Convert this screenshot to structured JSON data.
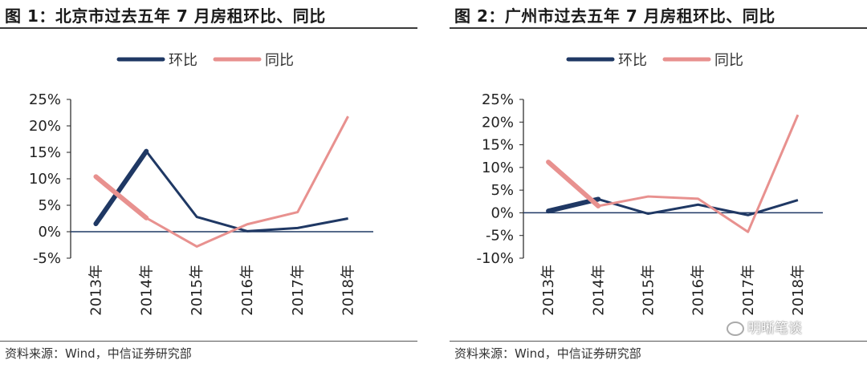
{
  "left": {
    "title": "图 1：北京市过去五年 7 月房租环比、同比",
    "source": "资料来源：Wind，中信证券研究部"
  },
  "right": {
    "title": "图 2：广州市过去五年 7 月房租环比、同比",
    "source": "资料来源：Wind，中信证券研究部"
  },
  "watermark": "明晰笔谈",
  "colors": {
    "huanbi": "#1f3864",
    "tongbi": "#e8918f",
    "axis": "#1f3864"
  },
  "chart_data": [
    {
      "type": "line",
      "categories": [
        "2013年",
        "2014年",
        "2015年",
        "2016年",
        "2017年",
        "2018年"
      ],
      "series": [
        {
          "name": "环比",
          "values": [
            1.5,
            15.2,
            2.8,
            0.1,
            0.7,
            2.5
          ]
        },
        {
          "name": "同比",
          "values": [
            10.4,
            2.6,
            -2.8,
            1.4,
            3.7,
            21.8
          ]
        }
      ],
      "yticks": [
        "25%",
        "20%",
        "15%",
        "10%",
        "5%",
        "0%",
        "-5%"
      ],
      "ylim": [
        -5,
        25
      ],
      "legend": "top-center",
      "grid": false
    },
    {
      "type": "line",
      "categories": [
        "2013年",
        "2014年",
        "2015年",
        "2016年",
        "2017年",
        "2018年"
      ],
      "series": [
        {
          "name": "环比",
          "values": [
            0.4,
            3.0,
            -0.2,
            1.8,
            -0.5,
            2.8
          ]
        },
        {
          "name": "同比",
          "values": [
            11.2,
            1.5,
            3.6,
            3.1,
            -4.2,
            21.6
          ]
        }
      ],
      "yticks": [
        "25%",
        "20%",
        "15%",
        "10%",
        "5%",
        "0%",
        "-5%",
        "-10%"
      ],
      "ylim": [
        -10,
        25
      ],
      "legend": "top-center",
      "grid": false
    }
  ]
}
